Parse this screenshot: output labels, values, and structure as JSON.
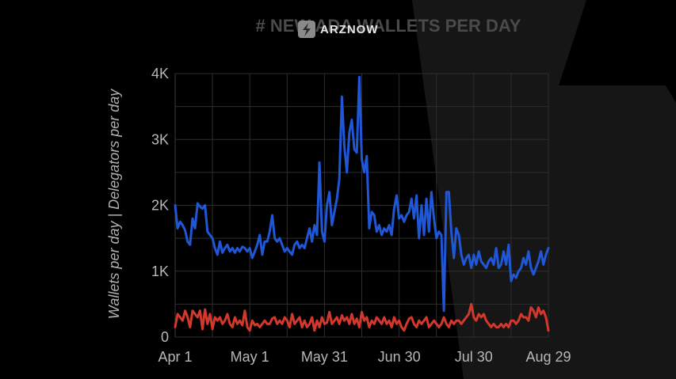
{
  "watermark": {
    "brand": "ARZNOW",
    "logo_icon": "lightning-bolt-icon"
  },
  "chart_data": {
    "type": "line",
    "title": "# NEW ADA WALLETS PER DAY",
    "ylabel": "Wallets per day | Delegators per day",
    "xlabel": "",
    "x_tick_labels": [
      "Apr 1",
      "May 1",
      "May 31",
      "Jun 30",
      "Jul 30",
      "Aug 29"
    ],
    "x_tick_days": [
      0,
      30,
      60,
      90,
      120,
      150
    ],
    "y_tick_labels": [
      "0",
      "1K",
      "2K",
      "3K",
      "4K"
    ],
    "y_tick_values": [
      0,
      1000,
      2000,
      3000,
      4000
    ],
    "ylim": [
      0,
      4000
    ],
    "xlim_days": [
      0,
      150
    ],
    "grid": true,
    "colors": {
      "background": "#000000",
      "grid": "#2e2e2e",
      "wallets": "#1f57d6",
      "delegators": "#d2382c",
      "axis_text": "#b8b8b8"
    },
    "series": [
      {
        "key": "wallets",
        "color": "#1f57d6",
        "points": [
          [
            0,
            2000
          ],
          [
            1,
            1650
          ],
          [
            2,
            1750
          ],
          [
            3,
            1700
          ],
          [
            4,
            1620
          ],
          [
            5,
            1450
          ],
          [
            6,
            1400
          ],
          [
            7,
            1800
          ],
          [
            8,
            1650
          ],
          [
            9,
            2030
          ],
          [
            10,
            1980
          ],
          [
            11,
            1950
          ],
          [
            12,
            2000
          ],
          [
            13,
            1600
          ],
          [
            14,
            1550
          ],
          [
            15,
            1500
          ],
          [
            16,
            1350
          ],
          [
            17,
            1250
          ],
          [
            18,
            1450
          ],
          [
            19,
            1280
          ],
          [
            20,
            1350
          ],
          [
            21,
            1400
          ],
          [
            22,
            1300
          ],
          [
            23,
            1350
          ],
          [
            24,
            1280
          ],
          [
            25,
            1350
          ],
          [
            26,
            1300
          ],
          [
            27,
            1370
          ],
          [
            28,
            1350
          ],
          [
            29,
            1300
          ],
          [
            30,
            1350
          ],
          [
            31,
            1200
          ],
          [
            32,
            1300
          ],
          [
            33,
            1400
          ],
          [
            34,
            1550
          ],
          [
            35,
            1250
          ],
          [
            36,
            1450
          ],
          [
            37,
            1450
          ],
          [
            38,
            1600
          ],
          [
            39,
            1850
          ],
          [
            40,
            1500
          ],
          [
            41,
            1450
          ],
          [
            42,
            1500
          ],
          [
            43,
            1400
          ],
          [
            44,
            1300
          ],
          [
            45,
            1350
          ],
          [
            46,
            1300
          ],
          [
            47,
            1250
          ],
          [
            48,
            1400
          ],
          [
            49,
            1450
          ],
          [
            50,
            1350
          ],
          [
            51,
            1400
          ],
          [
            52,
            1350
          ],
          [
            53,
            1500
          ],
          [
            54,
            1650
          ],
          [
            55,
            1450
          ],
          [
            56,
            1700
          ],
          [
            57,
            1550
          ],
          [
            58,
            2650
          ],
          [
            59,
            1600
          ],
          [
            60,
            1450
          ],
          [
            61,
            2000
          ],
          [
            62,
            2200
          ],
          [
            63,
            1700
          ],
          [
            64,
            1900
          ],
          [
            65,
            2100
          ],
          [
            66,
            2400
          ],
          [
            67,
            3650
          ],
          [
            68,
            2900
          ],
          [
            69,
            2500
          ],
          [
            70,
            3100
          ],
          [
            71,
            3300
          ],
          [
            72,
            2850
          ],
          [
            73,
            2800
          ],
          [
            74,
            3950
          ],
          [
            75,
            2700
          ],
          [
            76,
            2500
          ],
          [
            77,
            2750
          ],
          [
            78,
            1650
          ],
          [
            79,
            1900
          ],
          [
            80,
            1850
          ],
          [
            81,
            1600
          ],
          [
            82,
            1700
          ],
          [
            83,
            1550
          ],
          [
            84,
            1650
          ],
          [
            85,
            1600
          ],
          [
            86,
            1700
          ],
          [
            87,
            1550
          ],
          [
            88,
            1950
          ],
          [
            89,
            2150
          ],
          [
            90,
            1800
          ],
          [
            91,
            1850
          ],
          [
            92,
            1750
          ],
          [
            93,
            1850
          ],
          [
            94,
            1900
          ],
          [
            95,
            2100
          ],
          [
            96,
            1800
          ],
          [
            97,
            2150
          ],
          [
            98,
            1500
          ],
          [
            99,
            2000
          ],
          [
            100,
            1550
          ],
          [
            101,
            2100
          ],
          [
            102,
            1600
          ],
          [
            103,
            2200
          ],
          [
            104,
            1800
          ],
          [
            105,
            1500
          ],
          [
            106,
            1600
          ],
          [
            107,
            1550
          ],
          [
            108,
            400
          ],
          [
            109,
            2200
          ],
          [
            110,
            2200
          ],
          [
            111,
            1600
          ],
          [
            112,
            1200
          ],
          [
            113,
            1650
          ],
          [
            114,
            1550
          ],
          [
            115,
            1250
          ],
          [
            116,
            1100
          ],
          [
            117,
            1200
          ],
          [
            118,
            1250
          ],
          [
            119,
            1050
          ],
          [
            120,
            1250
          ],
          [
            121,
            1100
          ],
          [
            122,
            1300
          ],
          [
            123,
            1150
          ],
          [
            124,
            1100
          ],
          [
            125,
            1050
          ],
          [
            126,
            1150
          ],
          [
            127,
            1200
          ],
          [
            128,
            1100
          ],
          [
            129,
            1350
          ],
          [
            130,
            1050
          ],
          [
            131,
            1100
          ],
          [
            132,
            1300
          ],
          [
            133,
            1100
          ],
          [
            134,
            1400
          ],
          [
            135,
            850
          ],
          [
            136,
            950
          ],
          [
            137,
            900
          ],
          [
            138,
            1000
          ],
          [
            139,
            1050
          ],
          [
            140,
            1200
          ],
          [
            141,
            1100
          ],
          [
            142,
            1300
          ],
          [
            143,
            1050
          ],
          [
            144,
            950
          ],
          [
            145,
            1050
          ],
          [
            146,
            1150
          ],
          [
            147,
            1300
          ],
          [
            148,
            1100
          ],
          [
            149,
            1250
          ],
          [
            150,
            1350
          ]
        ]
      },
      {
        "key": "delegators",
        "color": "#d2382c",
        "points": [
          [
            0,
            150
          ],
          [
            1,
            350
          ],
          [
            2,
            300
          ],
          [
            3,
            250
          ],
          [
            4,
            400
          ],
          [
            5,
            300
          ],
          [
            6,
            150
          ],
          [
            7,
            400
          ],
          [
            8,
            350
          ],
          [
            9,
            300
          ],
          [
            10,
            400
          ],
          [
            11,
            120
          ],
          [
            12,
            420
          ],
          [
            13,
            200
          ],
          [
            14,
            350
          ],
          [
            15,
            120
          ],
          [
            16,
            300
          ],
          [
            17,
            250
          ],
          [
            18,
            300
          ],
          [
            19,
            200
          ],
          [
            20,
            250
          ],
          [
            21,
            350
          ],
          [
            22,
            200
          ],
          [
            23,
            150
          ],
          [
            24,
            300
          ],
          [
            25,
            200
          ],
          [
            26,
            250
          ],
          [
            27,
            180
          ],
          [
            28,
            400
          ],
          [
            29,
            150
          ],
          [
            30,
            100
          ],
          [
            31,
            250
          ],
          [
            32,
            180
          ],
          [
            33,
            200
          ],
          [
            34,
            150
          ],
          [
            35,
            200
          ],
          [
            36,
            250
          ],
          [
            37,
            200
          ],
          [
            38,
            200
          ],
          [
            39,
            280
          ],
          [
            40,
            300
          ],
          [
            41,
            200
          ],
          [
            42,
            250
          ],
          [
            43,
            200
          ],
          [
            44,
            300
          ],
          [
            45,
            250
          ],
          [
            46,
            150
          ],
          [
            47,
            350
          ],
          [
            48,
            200
          ],
          [
            49,
            250
          ],
          [
            50,
            300
          ],
          [
            51,
            150
          ],
          [
            52,
            250
          ],
          [
            53,
            150
          ],
          [
            54,
            200
          ],
          [
            55,
            300
          ],
          [
            56,
            100
          ],
          [
            57,
            250
          ],
          [
            58,
            150
          ],
          [
            59,
            300
          ],
          [
            60,
            200
          ],
          [
            61,
            220
          ],
          [
            62,
            380
          ],
          [
            63,
            200
          ],
          [
            64,
            250
          ],
          [
            65,
            300
          ],
          [
            66,
            200
          ],
          [
            67,
            330
          ],
          [
            68,
            250
          ],
          [
            69,
            300
          ],
          [
            70,
            200
          ],
          [
            71,
            350
          ],
          [
            72,
            200
          ],
          [
            73,
            280
          ],
          [
            74,
            150
          ],
          [
            75,
            380
          ],
          [
            76,
            250
          ],
          [
            77,
            300
          ],
          [
            78,
            150
          ],
          [
            79,
            250
          ],
          [
            80,
            200
          ],
          [
            81,
            300
          ],
          [
            82,
            250
          ],
          [
            83,
            200
          ],
          [
            84,
            300
          ],
          [
            85,
            200
          ],
          [
            86,
            250
          ],
          [
            87,
            150
          ],
          [
            88,
            300
          ],
          [
            89,
            200
          ],
          [
            90,
            250
          ],
          [
            91,
            150
          ],
          [
            92,
            100
          ],
          [
            93,
            200
          ],
          [
            94,
            280
          ],
          [
            95,
            300
          ],
          [
            96,
            200
          ],
          [
            97,
            150
          ],
          [
            98,
            250
          ],
          [
            99,
            200
          ],
          [
            100,
            250
          ],
          [
            101,
            300
          ],
          [
            102,
            150
          ],
          [
            103,
            200
          ],
          [
            104,
            250
          ],
          [
            105,
            200
          ],
          [
            106,
            150
          ],
          [
            107,
            200
          ],
          [
            108,
            300
          ],
          [
            109,
            200
          ],
          [
            110,
            150
          ],
          [
            111,
            250
          ],
          [
            112,
            200
          ],
          [
            113,
            250
          ],
          [
            114,
            250
          ],
          [
            115,
            200
          ],
          [
            116,
            250
          ],
          [
            117,
            300
          ],
          [
            118,
            350
          ],
          [
            119,
            500
          ],
          [
            120,
            300
          ],
          [
            121,
            250
          ],
          [
            122,
            350
          ],
          [
            123,
            300
          ],
          [
            124,
            350
          ],
          [
            125,
            250
          ],
          [
            126,
            200
          ],
          [
            127,
            150
          ],
          [
            128,
            200
          ],
          [
            129,
            150
          ],
          [
            130,
            150
          ],
          [
            131,
            200
          ],
          [
            132,
            150
          ],
          [
            133,
            200
          ],
          [
            134,
            150
          ],
          [
            135,
            250
          ],
          [
            136,
            250
          ],
          [
            137,
            200
          ],
          [
            138,
            250
          ],
          [
            139,
            350
          ],
          [
            140,
            300
          ],
          [
            141,
            300
          ],
          [
            142,
            250
          ],
          [
            143,
            450
          ],
          [
            144,
            400
          ],
          [
            145,
            300
          ],
          [
            146,
            450
          ],
          [
            147,
            350
          ],
          [
            148,
            400
          ],
          [
            149,
            300
          ],
          [
            150,
            100
          ]
        ]
      }
    ]
  }
}
